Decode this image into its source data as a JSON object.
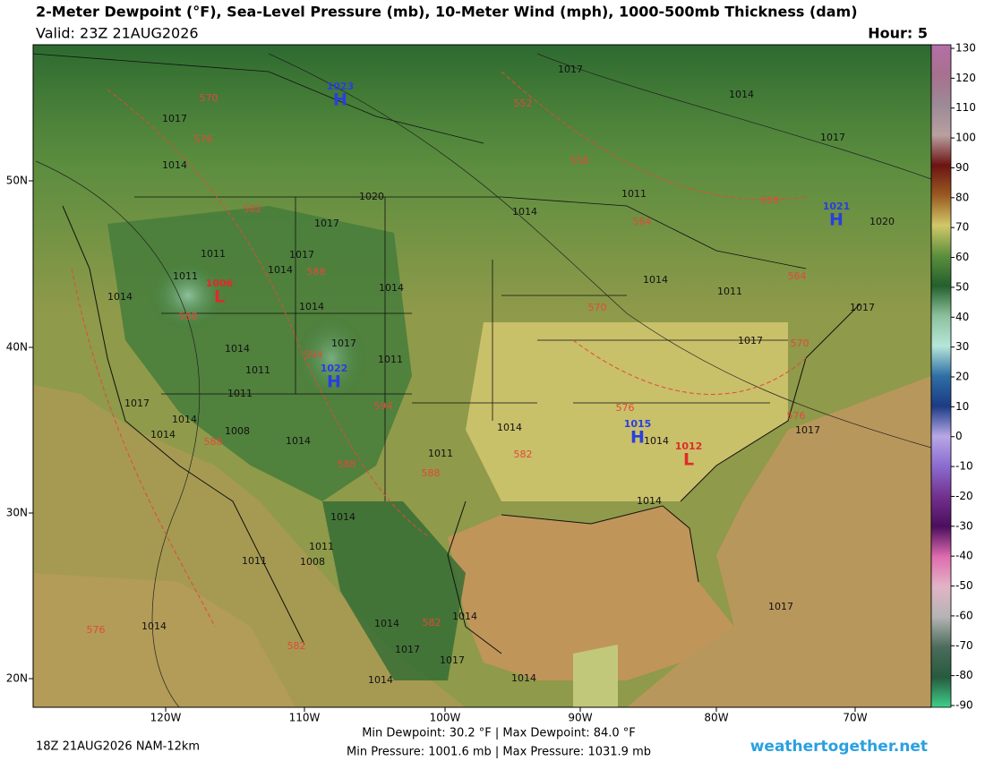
{
  "header": {
    "title": "2-Meter Dewpoint (°F), Sea-Level Pressure (mb), 10-Meter Wind (mph), 1000-500mb Thickness (dam)",
    "valid": "Valid: 23Z 21AUG2026",
    "hour": "Hour: 5"
  },
  "colorbar": {
    "ticks": [
      130,
      120,
      110,
      100,
      90,
      80,
      70,
      60,
      50,
      40,
      30,
      20,
      10,
      0,
      -10,
      -20,
      -30,
      -40,
      -50,
      -60,
      -70,
      -80,
      -90
    ],
    "colors": [
      "#b56fa8",
      "#a8708f",
      "#9c8a96",
      "#b9a0a0",
      "#6c1412",
      "#9a5a22",
      "#d0c868",
      "#5c8f3e",
      "#24602c",
      "#8cc09c",
      "#b6e6da",
      "#2f6fa4",
      "#1b3b84",
      "#b7a7e6",
      "#8b6bd0",
      "#73308e",
      "#4b0e5e",
      "#de6cae",
      "#e2b4c6",
      "#b4b4b4",
      "#4c6c5c",
      "#275a3e",
      "#3fd08a"
    ]
  },
  "axes": {
    "lon_labels": [
      "120W",
      "110W",
      "100W",
      "90W",
      "80W",
      "70W"
    ],
    "lat_labels": [
      "50N",
      "40N",
      "30N",
      "20N"
    ]
  },
  "pressure_centers": [
    {
      "letter": "H",
      "value": 1023,
      "color": "#2a3ee0"
    },
    {
      "letter": "L",
      "value": 1006,
      "color": "#e02a2a"
    },
    {
      "letter": "H",
      "value": 1022,
      "color": "#2a3ee0"
    },
    {
      "letter": "H",
      "value": 1015,
      "color": "#2a3ee0"
    },
    {
      "letter": "L",
      "value": 1012,
      "color": "#e02a2a"
    },
    {
      "letter": "H",
      "value": 1021,
      "color": "#2a3ee0"
    }
  ],
  "pressure_labels": [
    1017,
    1014,
    1017,
    1017,
    1014,
    1020,
    1011,
    1014,
    1020,
    1017,
    1011,
    1017,
    1014,
    1011,
    1014,
    1014,
    1014,
    1011,
    1014,
    1017,
    1017,
    1017,
    1014,
    1011,
    1011,
    1011,
    1017,
    1014,
    1014,
    1008,
    1014,
    1014,
    1011,
    1014,
    1017,
    1014,
    1014,
    1011,
    1011,
    1008,
    1014,
    1014,
    1014,
    1017,
    1017,
    1017,
    1014,
    1014
  ],
  "thickness_labels": [
    570,
    576,
    552,
    558,
    558,
    564,
    582,
    588,
    564,
    570,
    588,
    594,
    576,
    594,
    570,
    576,
    588,
    588,
    582,
    588,
    582,
    576,
    582
  ],
  "footer": {
    "run": "18Z 21AUG2026 NAM-12km",
    "stats_dewpoint": "Min Dewpoint:  30.2 °F | Max Dewpoint:  84.0 °F",
    "stats_pressure": "Min Pressure: 1001.6 mb | Max Pressure: 1031.9 mb",
    "credit": "weathertogether.net"
  }
}
